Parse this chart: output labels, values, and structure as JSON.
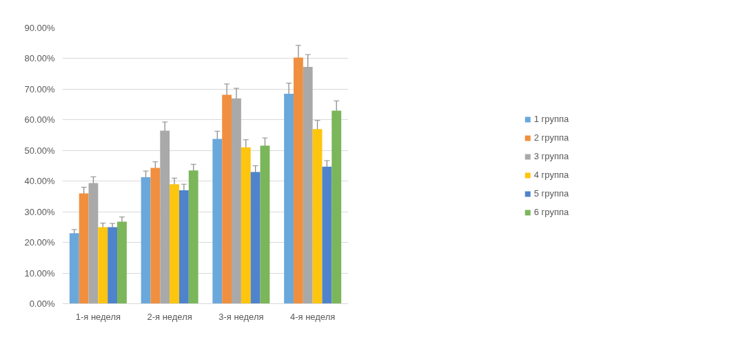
{
  "chart_data": {
    "type": "bar",
    "categories": [
      "1-я неделя",
      "2-я неделя",
      "3-я неделя",
      "4-я неделя"
    ],
    "series": [
      {
        "name": "1 группа",
        "color": "#6aa8db",
        "values": [
          23,
          41.3,
          53.8,
          68.5
        ],
        "errors": [
          1.2,
          2,
          2.5,
          3.5
        ]
      },
      {
        "name": "2 группа",
        "color": "#f08f3f",
        "values": [
          36,
          44.3,
          68.2,
          80.3
        ],
        "errors": [
          2,
          2,
          3.5,
          4
        ]
      },
      {
        "name": "3 группа",
        "color": "#a9a9a9",
        "values": [
          39.4,
          56.5,
          67,
          77.3
        ],
        "errors": [
          2,
          2.8,
          3.3,
          4
        ]
      },
      {
        "name": "4 группа",
        "color": "#fec50f",
        "values": [
          25,
          39,
          51,
          57
        ],
        "errors": [
          1.3,
          2,
          2.5,
          2.8
        ]
      },
      {
        "name": "5 группа",
        "color": "#4f83cc",
        "values": [
          25,
          37,
          43,
          44.7
        ],
        "errors": [
          1.2,
          2,
          2,
          2
        ]
      },
      {
        "name": "6 группа",
        "color": "#7bb65a",
        "values": [
          26.8,
          43.5,
          51.6,
          63
        ],
        "errors": [
          1.5,
          2,
          2.5,
          3.2
        ]
      }
    ],
    "ylim": [
      0,
      90
    ],
    "yticks": [
      {
        "value": 0,
        "label": "0.00%"
      },
      {
        "value": 10,
        "label": "10.00%"
      },
      {
        "value": 20,
        "label": "20.00%"
      },
      {
        "value": 30,
        "label": "30.00%"
      },
      {
        "value": 40,
        "label": "40.00%"
      },
      {
        "value": 50,
        "label": "50.00%"
      },
      {
        "value": 60,
        "label": "60.00%"
      },
      {
        "value": 70,
        "label": "70.00%"
      },
      {
        "value": 80,
        "label": "80.00%"
      },
      {
        "value": 90,
        "label": "90.00%"
      }
    ],
    "grid": "y",
    "legend": "right"
  }
}
